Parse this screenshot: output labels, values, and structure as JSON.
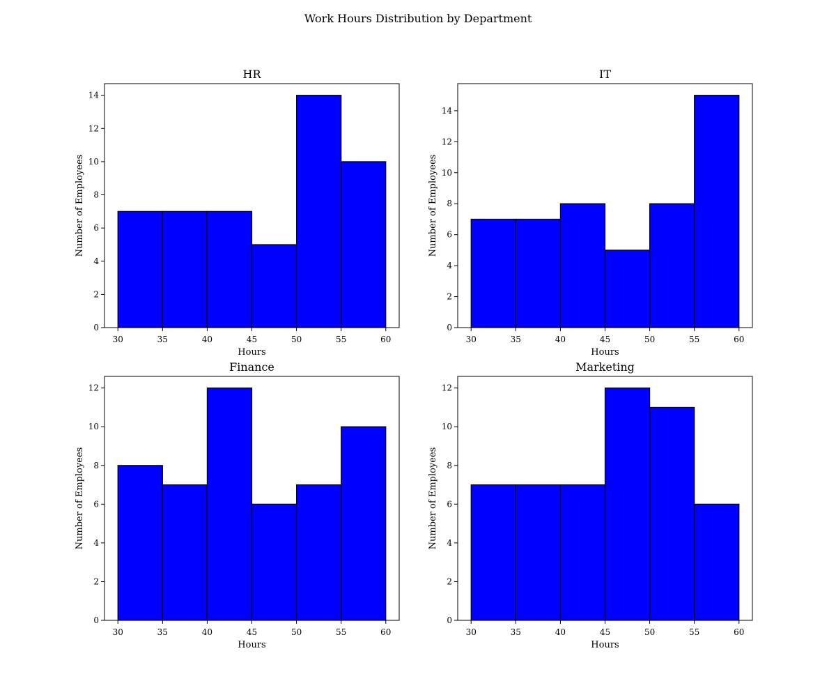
{
  "figure": {
    "title": "Work Hours Distribution by Department"
  },
  "chart_data": [
    {
      "type": "bar",
      "title": "HR",
      "xlabel": "Hours",
      "ylabel": "Number of Employees",
      "bin_edges": [
        30,
        35,
        40,
        45,
        50,
        55,
        60
      ],
      "values": [
        7,
        7,
        7,
        5,
        14,
        10
      ],
      "xlim": [
        28.5,
        61.5
      ],
      "ylim": [
        0,
        14.7
      ],
      "xticks": [
        30,
        35,
        40,
        45,
        50,
        55,
        60
      ],
      "yticks": [
        0,
        2,
        4,
        6,
        8,
        10,
        12,
        14
      ],
      "bar_color": "#0000ff",
      "edge_color": "#000000",
      "grid": false
    },
    {
      "type": "bar",
      "title": "IT",
      "xlabel": "Hours",
      "ylabel": "Number of Employees",
      "bin_edges": [
        30,
        35,
        40,
        45,
        50,
        55,
        60
      ],
      "values": [
        7,
        7,
        8,
        5,
        8,
        15
      ],
      "xlim": [
        28.5,
        61.5
      ],
      "ylim": [
        0,
        15.75
      ],
      "xticks": [
        30,
        35,
        40,
        45,
        50,
        55,
        60
      ],
      "yticks": [
        0,
        2,
        4,
        6,
        8,
        10,
        12,
        14
      ],
      "bar_color": "#0000ff",
      "edge_color": "#000000",
      "grid": false
    },
    {
      "type": "bar",
      "title": "Finance",
      "xlabel": "Hours",
      "ylabel": "Number of Employees",
      "bin_edges": [
        30,
        35,
        40,
        45,
        50,
        55,
        60
      ],
      "values": [
        8,
        7,
        12,
        6,
        7,
        10
      ],
      "xlim": [
        28.5,
        61.5
      ],
      "ylim": [
        0,
        12.6
      ],
      "xticks": [
        30,
        35,
        40,
        45,
        50,
        55,
        60
      ],
      "yticks": [
        0,
        2,
        4,
        6,
        8,
        10,
        12
      ],
      "bar_color": "#0000ff",
      "edge_color": "#000000",
      "grid": false
    },
    {
      "type": "bar",
      "title": "Marketing",
      "xlabel": "Hours",
      "ylabel": "Number of Employees",
      "bin_edges": [
        30,
        35,
        40,
        45,
        50,
        55,
        60
      ],
      "values": [
        7,
        7,
        7,
        12,
        11,
        6
      ],
      "xlim": [
        28.5,
        61.5
      ],
      "ylim": [
        0,
        12.6
      ],
      "xticks": [
        30,
        35,
        40,
        45,
        50,
        55,
        60
      ],
      "yticks": [
        0,
        2,
        4,
        6,
        8,
        10,
        12
      ],
      "bar_color": "#0000ff",
      "edge_color": "#000000",
      "grid": false
    }
  ]
}
